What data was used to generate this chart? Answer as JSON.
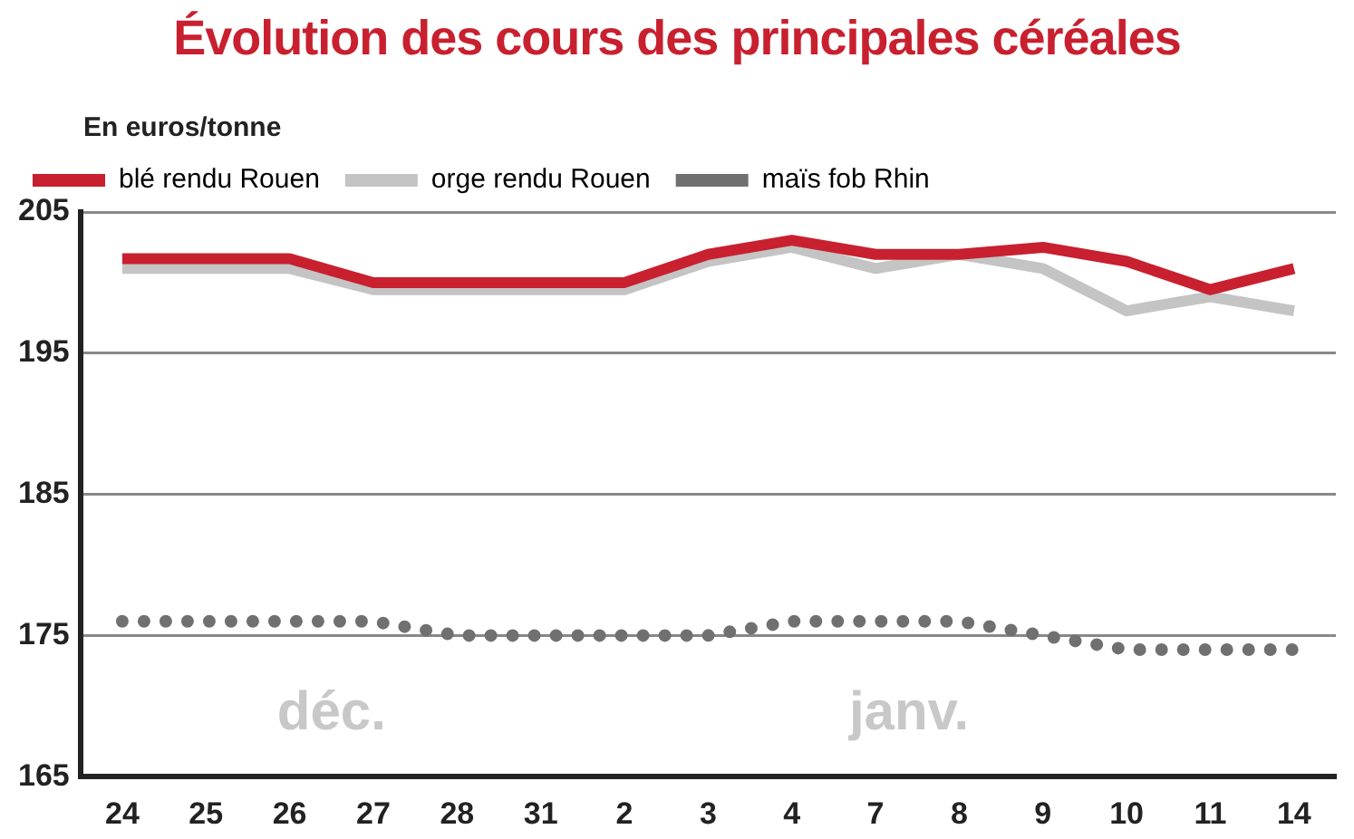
{
  "chart_data": {
    "type": "line",
    "title": "Évolution des cours des principales céréales",
    "ylabel": "En euros/tonne",
    "categories": [
      "24",
      "25",
      "26",
      "27",
      "28",
      "31",
      "2",
      "3",
      "4",
      "7",
      "8",
      "9",
      "10",
      "11",
      "14"
    ],
    "series": [
      {
        "name": "blé rendu Rouen",
        "color": "#c8202f",
        "line_style": "solid",
        "values": [
          201.7,
          201.7,
          201.7,
          200,
          200,
          200,
          200,
          202,
          203,
          202,
          202,
          202.5,
          201.5,
          199.5,
          201
        ]
      },
      {
        "name": "orge rendu Rouen",
        "color": "#c4c4c4",
        "line_style": "solid",
        "values": [
          201,
          201,
          201,
          199.5,
          199.5,
          199.5,
          199.5,
          201.5,
          202.5,
          201,
          202,
          201,
          198,
          199,
          198
        ]
      },
      {
        "name": "maïs fob Rhin",
        "color": "#707070",
        "line_style": "dotted",
        "values": [
          176,
          176,
          176,
          176,
          175,
          175,
          175,
          175,
          176,
          176,
          176,
          175,
          174,
          174,
          174
        ]
      }
    ],
    "ylim": [
      165,
      205
    ],
    "yticks": [
      165,
      175,
      185,
      195,
      205
    ],
    "grid": "y",
    "legend": "top left",
    "marker": "none",
    "annotations": [
      "déc.",
      "janv."
    ]
  }
}
